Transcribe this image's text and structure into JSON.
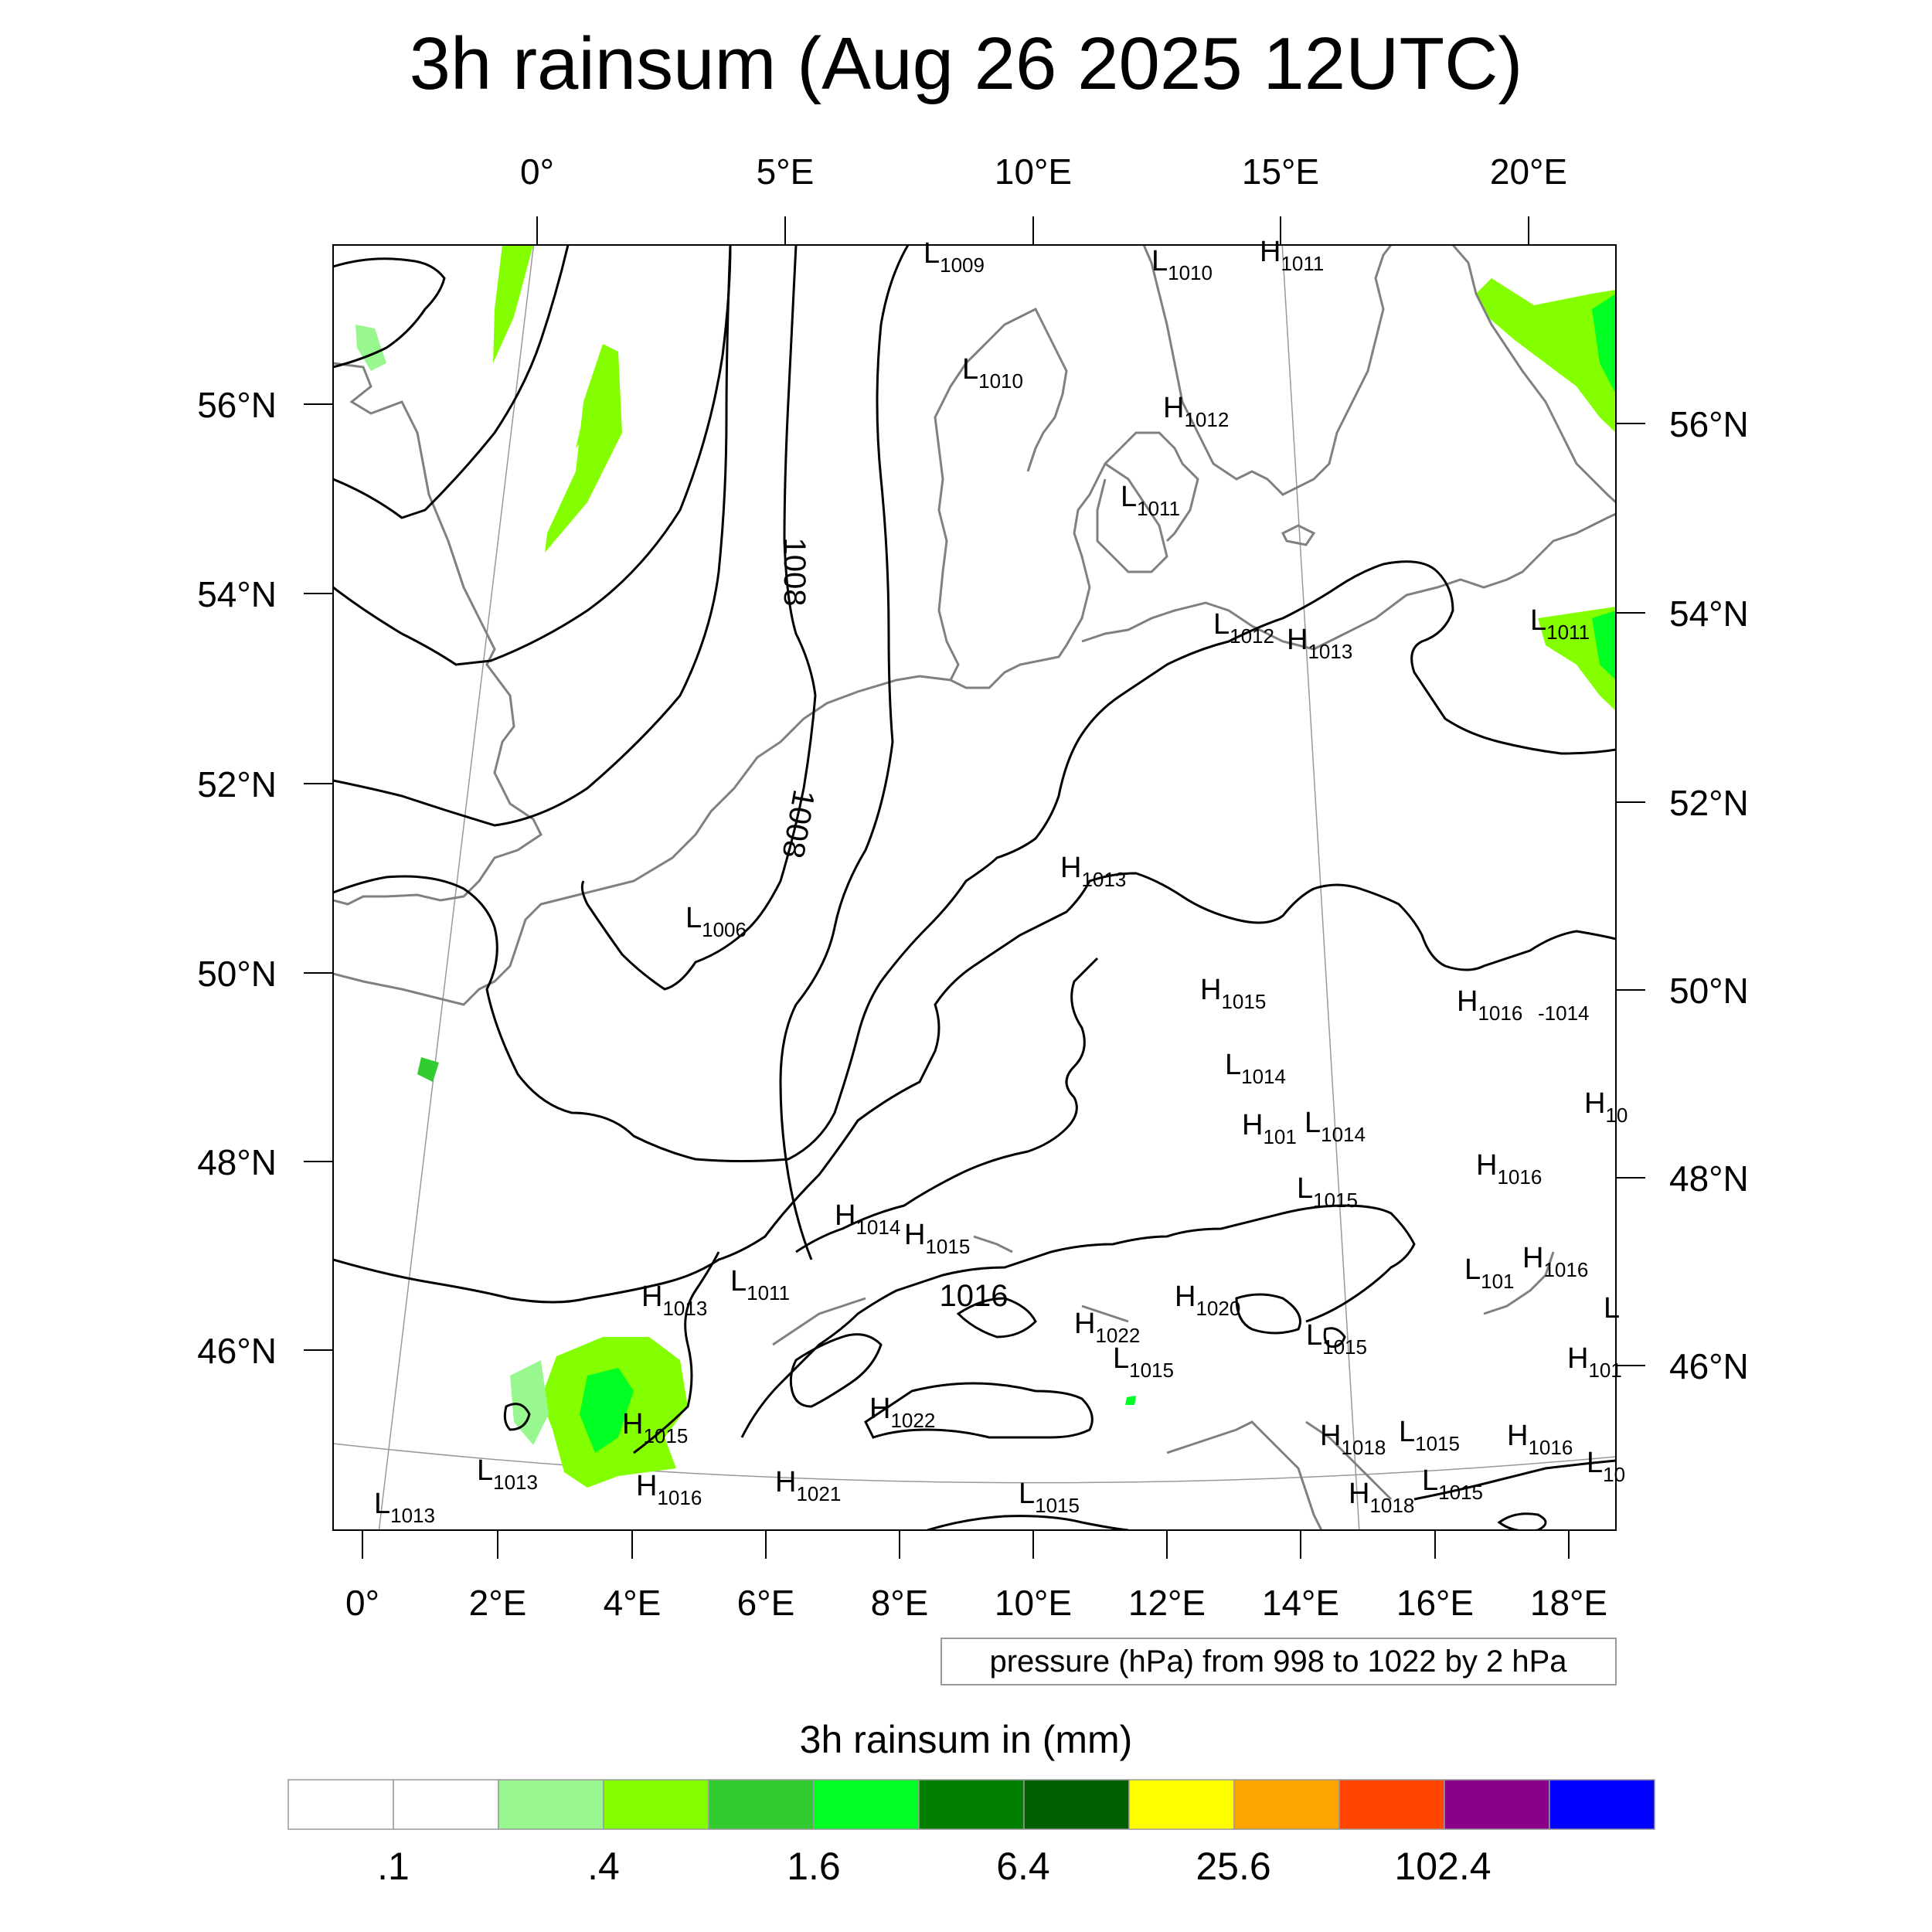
{
  "title": "3h rainsum (Aug 26 2025 12UTC)",
  "top_lon_labels": [
    "0°",
    "5°E",
    "10°E",
    "15°E",
    "20°E"
  ],
  "bottom_lon_labels": [
    "0°",
    "2°E",
    "4°E",
    "6°E",
    "8°E",
    "10°E",
    "12°E",
    "14°E",
    "16°E",
    "18°E"
  ],
  "left_lat_labels": [
    "56°N",
    "54°N",
    "52°N",
    "50°N",
    "48°N",
    "46°N"
  ],
  "right_lat_labels": [
    "56°N",
    "54°N",
    "52°N",
    "50°N",
    "48°N",
    "46°N"
  ],
  "contour_labels": [
    "1008",
    "1008",
    "1016"
  ],
  "pressure_centers": [
    {
      "t": "L",
      "v": "1009"
    },
    {
      "t": "L",
      "v": "1010"
    },
    {
      "t": "H",
      "v": "1011"
    },
    {
      "t": "L",
      "v": "1010"
    },
    {
      "t": "H",
      "v": "1012"
    },
    {
      "t": "L",
      "v": "1011"
    },
    {
      "t": "L",
      "v": "1012"
    },
    {
      "t": "H",
      "v": "1013"
    },
    {
      "t": "L",
      "v": "1011"
    },
    {
      "t": "H",
      "v": "1013"
    },
    {
      "t": "L",
      "v": "1006"
    },
    {
      "t": "H",
      "v": "1015"
    },
    {
      "t": "H",
      "v": "1016"
    },
    {
      "t": "",
      "v": "-1014"
    },
    {
      "t": "L",
      "v": "1014"
    },
    {
      "t": "H",
      "v": "10"
    },
    {
      "t": "H",
      "v": "101"
    },
    {
      "t": "L",
      "v": "1014"
    },
    {
      "t": "H",
      "v": "1016"
    },
    {
      "t": "L",
      "v": "1015"
    },
    {
      "t": "H",
      "v": "1014"
    },
    {
      "t": "H",
      "v": "1015"
    },
    {
      "t": "L",
      "v": "101"
    },
    {
      "t": "H",
      "v": "1016"
    },
    {
      "t": "H",
      "v": "1013"
    },
    {
      "t": "L",
      "v": "1011"
    },
    {
      "t": "H",
      "v": "1020"
    },
    {
      "t": "L",
      "v": ""
    },
    {
      "t": "H",
      "v": "1022"
    },
    {
      "t": "L",
      "v": "1015"
    },
    {
      "t": "L",
      "v": "1015"
    },
    {
      "t": "H",
      "v": "101"
    },
    {
      "t": "H",
      "v": "1015"
    },
    {
      "t": "H",
      "v": "1022"
    },
    {
      "t": "L",
      "v": "1013"
    },
    {
      "t": "H",
      "v": "1018"
    },
    {
      "t": "L",
      "v": "1015"
    },
    {
      "t": "H",
      "v": "1016"
    },
    {
      "t": "L",
      "v": "10"
    },
    {
      "t": "H",
      "v": "1016"
    },
    {
      "t": "H",
      "v": "1021"
    },
    {
      "t": "L",
      "v": "1015"
    },
    {
      "t": "H",
      "v": "1018"
    },
    {
      "t": "L",
      "v": "1015"
    },
    {
      "t": "L",
      "v": "1013"
    }
  ],
  "info_box": "pressure (hPa) from 998 to 1022 by 2 hPa",
  "colorbar": {
    "title": "3h rainsum in (mm)",
    "colors": [
      "#ffffff",
      "#ffffff",
      "#99f78f",
      "#84ff00",
      "#30cc30",
      "#00ff22",
      "#007f00",
      "#005f00",
      "#ffff00",
      "#ffa500",
      "#ff4500",
      "#8b008b",
      "#0000ff"
    ],
    "labels": [
      ".1",
      ".4",
      "1.6",
      "6.4",
      "25.6",
      "102.4"
    ]
  },
  "colors": {
    "coast": "#808080",
    "isobar": "#000000",
    "rain_light": "#99f78f",
    "rain_med": "#84ff00",
    "rain_bright": "#00ff22"
  }
}
